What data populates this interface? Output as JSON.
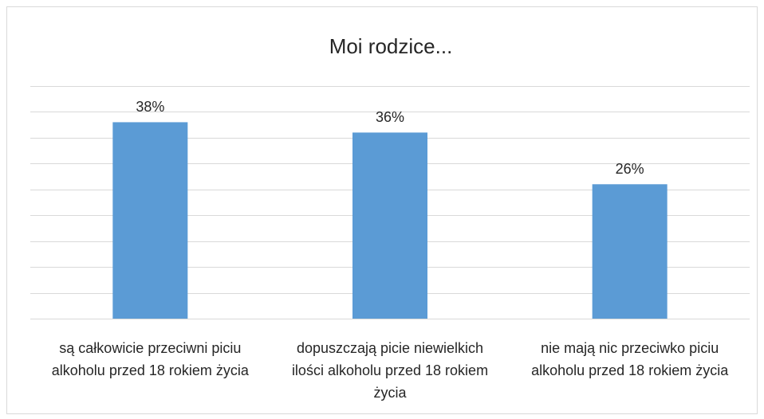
{
  "chart_data": {
    "type": "bar",
    "title": "Moi rodzice...",
    "categories": [
      "są całkowicie przeciwni piciu alkoholu przed 18 rokiem życia",
      "dopuszczają picie niewielkich ilości alkoholu przed 18 rokiem życia",
      "nie mają nic przeciwko piciu alkoholu przed 18 rokiem życia"
    ],
    "values": [
      38,
      36,
      26
    ],
    "value_labels": [
      "38%",
      "36%",
      "26%"
    ],
    "color": "#5b9bd5",
    "ylim": [
      0,
      45
    ],
    "yticks": [
      0,
      5,
      10,
      15,
      20,
      25,
      30,
      35,
      40,
      45
    ],
    "grid": true
  }
}
